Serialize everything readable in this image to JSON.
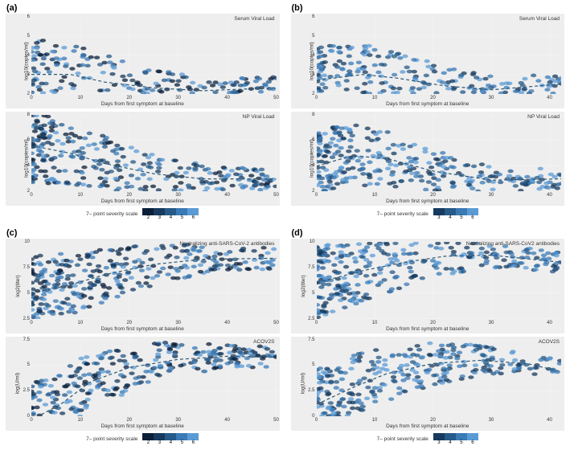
{
  "severity_colors": [
    "#0b1f3a",
    "#173a5e",
    "#265a88",
    "#3a7ab5",
    "#5b9bd5",
    "#8ec1e8"
  ],
  "legend": {
    "title": "7– point severity scale"
  },
  "xlabel": "Days from first symptom at baseline",
  "marker": {
    "size": 2.0,
    "opacity": 0.75
  },
  "trend": {
    "color": "#2b5876",
    "dash": "4,3",
    "width": 1.2
  },
  "background_color": "#eeeeee",
  "grid_color": "#ffffff",
  "panels": [
    {
      "id": "a",
      "label": "(a)",
      "legend_levels": [
        2,
        3,
        4,
        5,
        6
      ],
      "charts": [
        {
          "title": "Serum Viral Load",
          "ylabel": "log10(copies/ml)",
          "xlim": [
            0,
            50
          ],
          "ylim": [
            2,
            6
          ],
          "xticks": [
            0,
            10,
            20,
            30,
            40,
            50
          ],
          "yticks": [
            2,
            3,
            4,
            5,
            6
          ],
          "trend_pts": [
            [
              0,
              3.0
            ],
            [
              8,
              3.0
            ],
            [
              15,
              2.6
            ],
            [
              25,
              2.3
            ],
            [
              35,
              2.15
            ],
            [
              50,
              2.3
            ]
          ],
          "n": 260
        },
        {
          "title": "NP Viral Load",
          "ylabel": "log10(copies/ml)",
          "xlim": [
            0,
            50
          ],
          "ylim": [
            2,
            8
          ],
          "xticks": [
            0,
            10,
            20,
            30,
            40,
            50
          ],
          "yticks": [
            2,
            4,
            6,
            8
          ],
          "trend_pts": [
            [
              0,
              5.6
            ],
            [
              8,
              5.0
            ],
            [
              15,
              4.2
            ],
            [
              25,
              3.4
            ],
            [
              35,
              3.0
            ],
            [
              50,
              3.0
            ]
          ],
          "n": 300
        }
      ]
    },
    {
      "id": "b",
      "label": "(b)",
      "legend_levels": [
        3,
        4,
        5,
        6
      ],
      "charts": [
        {
          "title": "Serum Viral Load",
          "ylabel": "log10(copies/ml)",
          "xlim": [
            0,
            42
          ],
          "ylim": [
            2,
            6
          ],
          "xticks": [
            0,
            10,
            20,
            30,
            40
          ],
          "yticks": [
            2,
            3,
            4,
            5,
            6
          ],
          "trend_pts": [
            [
              0,
              2.7
            ],
            [
              8,
              3.0
            ],
            [
              14,
              2.8
            ],
            [
              22,
              2.4
            ],
            [
              30,
              2.2
            ],
            [
              42,
              2.5
            ]
          ],
          "n": 260
        },
        {
          "title": "NP Viral Load",
          "ylabel": "log10(copies/ml)",
          "xlim": [
            0,
            42
          ],
          "ylim": [
            2,
            8
          ],
          "xticks": [
            0,
            10,
            20,
            30,
            40
          ],
          "yticks": [
            2,
            4,
            6,
            8
          ],
          "trend_pts": [
            [
              0,
              4.0
            ],
            [
              6,
              4.8
            ],
            [
              12,
              4.6
            ],
            [
              20,
              3.6
            ],
            [
              30,
              2.9
            ],
            [
              42,
              3.0
            ]
          ],
          "n": 300
        }
      ]
    },
    {
      "id": "c",
      "label": "(c)",
      "legend_levels": [
        2,
        3,
        4,
        5,
        6
      ],
      "charts": [
        {
          "title": "Neutralizing anti-SARS-CoV-2 antibodies",
          "ylabel": "log2(titer)",
          "xlim": [
            0,
            50
          ],
          "ylim": [
            2.5,
            10
          ],
          "xticks": [
            0,
            10,
            20,
            30,
            40,
            50
          ],
          "yticks": [
            2.5,
            5,
            7.5,
            10
          ],
          "trend_pts": [
            [
              0,
              5.0
            ],
            [
              8,
              5.8
            ],
            [
              15,
              6.8
            ],
            [
              25,
              7.8
            ],
            [
              35,
              8.3
            ],
            [
              50,
              8.4
            ]
          ],
          "n": 320
        },
        {
          "title": "ACOV2S",
          "ylabel": "log(U/ml)",
          "xlim": [
            0,
            50
          ],
          "ylim": [
            0,
            7.5
          ],
          "xticks": [
            0,
            10,
            20,
            30,
            40,
            50
          ],
          "yticks": [
            0,
            2.5,
            5,
            7.5
          ],
          "trend_pts": [
            [
              0,
              -0.3
            ],
            [
              6,
              1.2
            ],
            [
              12,
              3.4
            ],
            [
              20,
              4.8
            ],
            [
              30,
              5.6
            ],
            [
              40,
              5.9
            ],
            [
              50,
              5.8
            ]
          ],
          "n": 320
        }
      ]
    },
    {
      "id": "d",
      "label": "(d)",
      "legend_levels": [
        3,
        4,
        5,
        6
      ],
      "charts": [
        {
          "title": "Neutralizing anti-SARS-CoV2 antibodies",
          "ylabel": "log2(titer)",
          "xlim": [
            0,
            42
          ],
          "ylim": [
            2.5,
            10
          ],
          "xticks": [
            0,
            10,
            20,
            30,
            40
          ],
          "yticks": [
            2.5,
            5,
            7.5,
            10
          ],
          "trend_pts": [
            [
              0,
              6.0
            ],
            [
              8,
              7.2
            ],
            [
              15,
              8.0
            ],
            [
              22,
              8.6
            ],
            [
              30,
              8.7
            ],
            [
              42,
              8.0
            ]
          ],
          "n": 320
        },
        {
          "title": "ACOV2S",
          "ylabel": "log(U/ml)",
          "xlim": [
            0,
            42
          ],
          "ylim": [
            0,
            7.5
          ],
          "xticks": [
            0,
            10,
            20,
            30,
            40
          ],
          "yticks": [
            0,
            2.5,
            5,
            7.5
          ],
          "trend_pts": [
            [
              0,
              1.2
            ],
            [
              6,
              2.8
            ],
            [
              12,
              4.2
            ],
            [
              20,
              5.2
            ],
            [
              28,
              5.5
            ],
            [
              36,
              5.2
            ],
            [
              42,
              4.4
            ]
          ],
          "n": 320
        }
      ]
    }
  ]
}
